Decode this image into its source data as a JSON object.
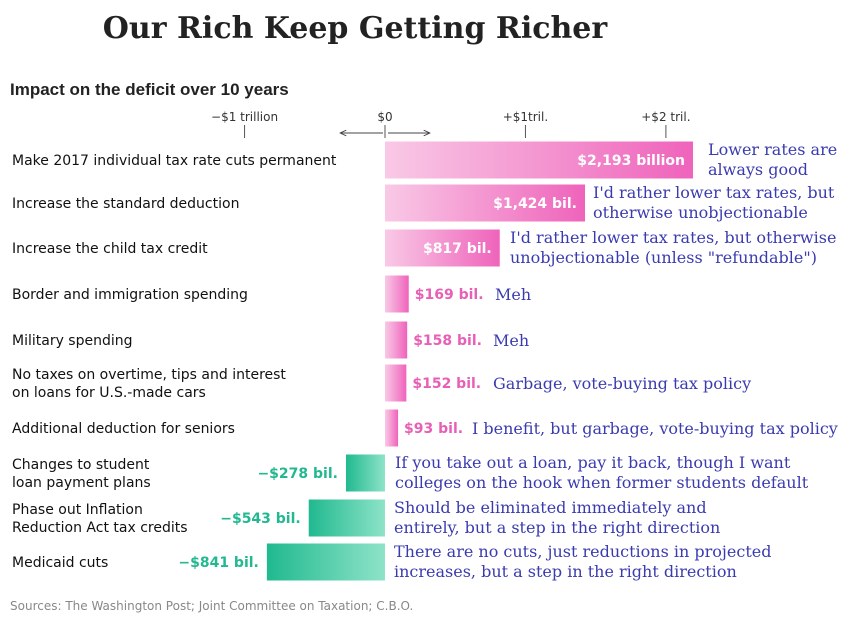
{
  "colors": {
    "positive": "#f06cbf",
    "positive_light": "#f7c2e3",
    "negative": "#2fc39a",
    "negative_light": "#bff0df",
    "note": "#3b3bb0"
  },
  "chart_data": {
    "type": "bar",
    "orientation": "horizontal",
    "title": "Our Rich Keep Getting Richer",
    "subtitle": "Impact on the deficit over 10 years",
    "ticks": [
      "−$1 trillion",
      "$0",
      "+$1tril.",
      "+$2 tril."
    ],
    "tick_values": [
      -1000,
      0,
      1000,
      2000
    ],
    "unit": "billion",
    "xlim": [
      -1000,
      2000
    ],
    "categories": [
      "Make 2017 individual tax rate cuts permanent",
      "Increase the standard deduction",
      "Increase the child tax credit",
      "Border and immigration spending",
      "Military spending",
      "No taxes on overtime, tips and interest on loans for U.S.-made cars",
      "Additional deduction for seniors",
      "Changes to student loan payment plans",
      "Phase out Inflation Reduction Act tax credits",
      "Medicaid cuts"
    ],
    "values": [
      2193,
      1424,
      817,
      169,
      158,
      152,
      93,
      -278,
      -543,
      -841
    ],
    "value_labels": [
      "$2,193 billion",
      "$1,424 bil.",
      "$817 bil.",
      "$169 bil.",
      "$158 bil.",
      "$152 bil.",
      "$93 bil.",
      "−$278 bil.",
      "−$543 bil.",
      "−$841 bil."
    ],
    "annotations": [
      "Lower rates are always good",
      "I'd rather lower tax rates, but otherwise unobjectionable",
      "I'd rather lower tax rates, but otherwise unobjectionable (unless \"refundable\")",
      "Meh",
      "Meh",
      "Garbage, vote-buying tax policy",
      "I benefit, but garbage, vote-buying tax policy",
      "If you take out a loan, pay it back, though I want colleges on the hook when former students default",
      "Should be eliminated immediately and entirely, but a step in the right direction",
      "There are no cuts, just reductions in projected increases, but a step in the right direction"
    ],
    "source": "Sources: The Washington Post; Joint Committee on Taxation; C.B.O."
  }
}
